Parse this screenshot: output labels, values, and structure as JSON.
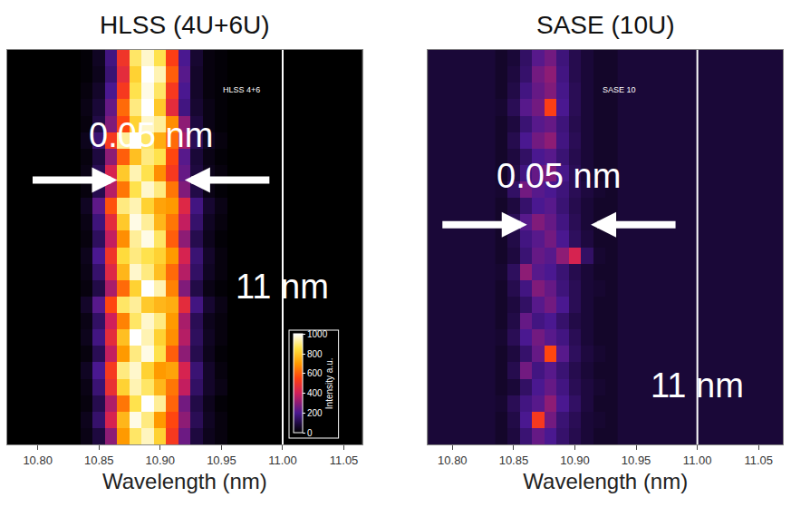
{
  "chart_data": [
    {
      "type": "heatmap",
      "title": "HLSS (4U+6U)",
      "label": "HLSS 4+6",
      "x_label": "Wavelength (nm)",
      "x": [
        10.84,
        10.85,
        10.86,
        10.87,
        10.88,
        10.89,
        10.9,
        10.91,
        10.92,
        10.93,
        10.94,
        10.95
      ],
      "cells": [
        [
          30,
          90,
          300,
          700,
          880,
          950,
          820,
          520,
          250,
          90,
          40,
          20
        ],
        [
          40,
          150,
          420,
          760,
          980,
          900,
          700,
          560,
          300,
          120,
          50,
          20
        ],
        [
          20,
          110,
          350,
          640,
          860,
          1000,
          920,
          610,
          260,
          100,
          40,
          10
        ],
        [
          30,
          160,
          480,
          820,
          940,
          880,
          760,
          640,
          380,
          140,
          60,
          30
        ],
        [
          50,
          200,
          520,
          900,
          960,
          820,
          700,
          720,
          420,
          160,
          60,
          20
        ],
        [
          20,
          120,
          380,
          700,
          900,
          980,
          860,
          600,
          300,
          110,
          40,
          10
        ],
        [
          40,
          180,
          460,
          780,
          1000,
          940,
          820,
          680,
          360,
          130,
          50,
          20
        ],
        [
          30,
          140,
          400,
          660,
          880,
          960,
          900,
          700,
          340,
          120,
          40,
          20
        ],
        [
          60,
          220,
          560,
          880,
          920,
          800,
          760,
          740,
          460,
          180,
          70,
          30
        ],
        [
          20,
          100,
          340,
          620,
          820,
          1000,
          940,
          660,
          280,
          100,
          30,
          10
        ],
        [
          30,
          150,
          440,
          760,
          960,
          900,
          780,
          620,
          360,
          140,
          50,
          20
        ],
        [
          40,
          200,
          500,
          840,
          900,
          860,
          820,
          700,
          420,
          160,
          60,
          20
        ],
        [
          20,
          130,
          380,
          680,
          920,
          980,
          880,
          600,
          300,
          110,
          40,
          10
        ],
        [
          30,
          170,
          460,
          800,
          980,
          920,
          760,
          640,
          380,
          150,
          50,
          20
        ],
        [
          50,
          230,
          580,
          900,
          940,
          820,
          720,
          700,
          440,
          180,
          70,
          30
        ],
        [
          20,
          110,
          360,
          640,
          860,
          960,
          900,
          640,
          280,
          100,
          30,
          10
        ],
        [
          30,
          120,
          420,
          800,
          940,
          860,
          680,
          520,
          240,
          90,
          40,
          20
        ],
        [
          20,
          90,
          300,
          600,
          780,
          900,
          860,
          560,
          220,
          80,
          30,
          10
        ],
        [
          40,
          160,
          520,
          920,
          1000,
          880,
          740,
          620,
          340,
          120,
          50,
          20
        ],
        [
          20,
          100,
          280,
          560,
          820,
          960,
          920,
          680,
          300,
          90,
          30,
          10
        ],
        [
          30,
          80,
          240,
          620,
          900,
          1000,
          800,
          460,
          180,
          70,
          30,
          10
        ],
        [
          20,
          60,
          200,
          520,
          860,
          980,
          880,
          520,
          200,
          60,
          20,
          10
        ],
        [
          10,
          40,
          160,
          460,
          820,
          1000,
          940,
          600,
          220,
          60,
          20,
          10
        ],
        [
          10,
          50,
          180,
          500,
          880,
          960,
          860,
          540,
          200,
          70,
          20,
          10
        ]
      ],
      "xlim": [
        10.775,
        11.065
      ],
      "xticks": [
        {
          "value": 10.8,
          "label": "10.80"
        },
        {
          "value": 10.85,
          "label": "10.85"
        },
        {
          "value": 10.9,
          "label": "10.90"
        },
        {
          "value": 10.95,
          "label": "10.95"
        },
        {
          "value": 11.0,
          "label": "11.00"
        },
        {
          "value": 11.05,
          "label": "11.05"
        }
      ],
      "tick_labels": "x",
      "reference_line": {
        "value": 11.0,
        "label": "11 nm"
      },
      "annotations": [
        {
          "text": "0.05 nm",
          "x": [
            10.865,
            10.92
          ]
        }
      ],
      "colorbar": {
        "range": [
          0,
          1000
        ],
        "ticks": [
          0,
          200,
          400,
          600,
          800,
          1000
        ],
        "title": "Intensity a.u."
      }
    },
    {
      "type": "heatmap",
      "title": "SASE (10U)",
      "label": "SASE 10",
      "x_label": "Wavelength (nm)",
      "x": [
        10.84,
        10.85,
        10.86,
        10.87,
        10.88,
        10.89,
        10.9,
        10.91,
        10.92,
        10.93
      ],
      "cells": [
        [
          60,
          90,
          160,
          240,
          200,
          150,
          110,
          80,
          60,
          60
        ],
        [
          60,
          100,
          200,
          520,
          260,
          160,
          120,
          80,
          70,
          60
        ],
        [
          70,
          120,
          180,
          220,
          300,
          200,
          140,
          90,
          60,
          60
        ],
        [
          60,
          80,
          140,
          200,
          240,
          180,
          120,
          90,
          70,
          60
        ],
        [
          60,
          110,
          260,
          180,
          220,
          160,
          110,
          80,
          60,
          60
        ],
        [
          60,
          90,
          150,
          240,
          560,
          220,
          130,
          90,
          70,
          60
        ],
        [
          70,
          120,
          200,
          260,
          220,
          180,
          120,
          80,
          60,
          60
        ],
        [
          60,
          100,
          240,
          180,
          200,
          150,
          100,
          80,
          60,
          60
        ],
        [
          60,
          90,
          140,
          220,
          260,
          200,
          120,
          80,
          60,
          60
        ],
        [
          60,
          110,
          180,
          280,
          240,
          170,
          120,
          80,
          70,
          60
        ],
        [
          70,
          130,
          300,
          220,
          200,
          160,
          110,
          80,
          60,
          60
        ],
        [
          60,
          90,
          160,
          240,
          220,
          300,
          420,
          140,
          70,
          60
        ],
        [
          60,
          100,
          180,
          220,
          260,
          200,
          130,
          90,
          60,
          60
        ],
        [
          60,
          120,
          220,
          280,
          240,
          180,
          120,
          80,
          60,
          60
        ],
        [
          60,
          90,
          150,
          200,
          220,
          160,
          110,
          80,
          60,
          60
        ],
        [
          70,
          140,
          260,
          220,
          200,
          170,
          120,
          90,
          70,
          60
        ],
        [
          60,
          100,
          180,
          240,
          280,
          190,
          120,
          80,
          60,
          60
        ],
        [
          60,
          90,
          140,
          200,
          220,
          160,
          110,
          80,
          60,
          60
        ],
        [
          60,
          110,
          200,
          260,
          300,
          180,
          120,
          80,
          60,
          60
        ],
        [
          60,
          90,
          160,
          220,
          240,
          170,
          110,
          80,
          60,
          60
        ],
        [
          70,
          120,
          220,
          260,
          540,
          200,
          120,
          80,
          60,
          60
        ],
        [
          60,
          100,
          180,
          240,
          280,
          190,
          120,
          80,
          60,
          60
        ],
        [
          60,
          90,
          150,
          260,
          300,
          180,
          110,
          80,
          60,
          60
        ],
        [
          60,
          80,
          140,
          220,
          260,
          170,
          110,
          80,
          60,
          60
        ]
      ],
      "xlim": [
        10.78,
        11.07
      ],
      "xticks": [
        {
          "value": 10.8,
          "label": "10.80"
        },
        {
          "value": 10.85,
          "label": "10.85"
        },
        {
          "value": 10.9,
          "label": "10.90"
        },
        {
          "value": 10.95,
          "label": "10.95"
        },
        {
          "value": 11.0,
          "label": "11.00"
        },
        {
          "value": 11.05,
          "label": "11.05"
        }
      ],
      "tick_labels": "x",
      "reference_line": {
        "value": 11.0,
        "label": "11 nm"
      },
      "annotations": [
        {
          "text": "0.05 nm",
          "x": [
            10.861,
            10.913
          ]
        }
      ],
      "zlim": [
        0,
        1000
      ]
    }
  ]
}
